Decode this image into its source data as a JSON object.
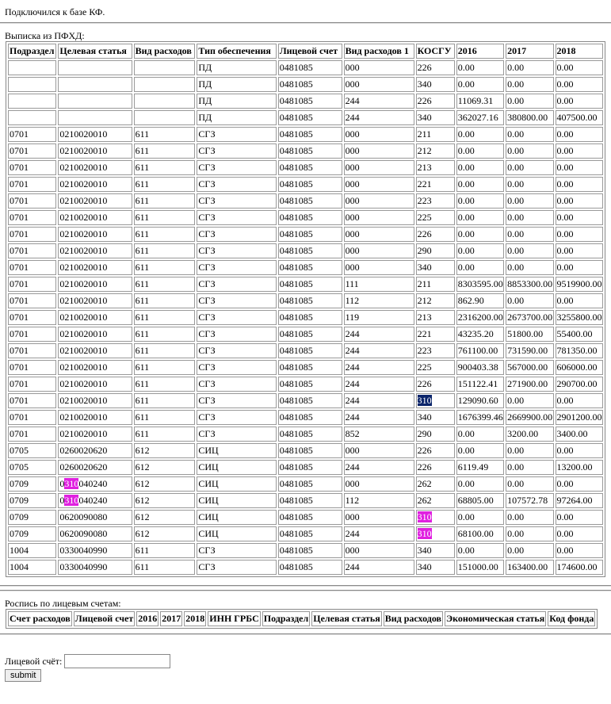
{
  "status": "Подключился к базе КФ.",
  "section1": {
    "title": "Выписка из ПФХД:",
    "table": {
      "header": [
        "Подраздел",
        "Целевая статья",
        "Вид расходов",
        "Тип обеспечения",
        "Лицевой счет",
        "Вид расходов 1",
        "КОСГУ",
        "2016",
        "2017",
        "2018"
      ],
      "rows": [
        [
          "",
          "",
          "",
          "ПД",
          "0481085",
          "000",
          "226",
          "0.00",
          "0.00",
          "0.00"
        ],
        [
          "",
          "",
          "",
          "ПД",
          "0481085",
          "000",
          "340",
          "0.00",
          "0.00",
          "0.00"
        ],
        [
          "",
          "",
          "",
          "ПД",
          "0481085",
          "244",
          "226",
          "11069.31",
          "0.00",
          "0.00"
        ],
        [
          "",
          "",
          "",
          "ПД",
          "0481085",
          "244",
          "340",
          "362027.16",
          "380800.00",
          "407500.00"
        ],
        [
          "0701",
          "0210020010",
          "611",
          "СГЗ",
          "0481085",
          "000",
          "211",
          "0.00",
          "0.00",
          "0.00"
        ],
        [
          "0701",
          "0210020010",
          "611",
          "СГЗ",
          "0481085",
          "000",
          "212",
          "0.00",
          "0.00",
          "0.00"
        ],
        [
          "0701",
          "0210020010",
          "611",
          "СГЗ",
          "0481085",
          "000",
          "213",
          "0.00",
          "0.00",
          "0.00"
        ],
        [
          "0701",
          "0210020010",
          "611",
          "СГЗ",
          "0481085",
          "000",
          "221",
          "0.00",
          "0.00",
          "0.00"
        ],
        [
          "0701",
          "0210020010",
          "611",
          "СГЗ",
          "0481085",
          "000",
          "223",
          "0.00",
          "0.00",
          "0.00"
        ],
        [
          "0701",
          "0210020010",
          "611",
          "СГЗ",
          "0481085",
          "000",
          "225",
          "0.00",
          "0.00",
          "0.00"
        ],
        [
          "0701",
          "0210020010",
          "611",
          "СГЗ",
          "0481085",
          "000",
          "226",
          "0.00",
          "0.00",
          "0.00"
        ],
        [
          "0701",
          "0210020010",
          "611",
          "СГЗ",
          "0481085",
          "000",
          "290",
          "0.00",
          "0.00",
          "0.00"
        ],
        [
          "0701",
          "0210020010",
          "611",
          "СГЗ",
          "0481085",
          "000",
          "340",
          "0.00",
          "0.00",
          "0.00"
        ],
        [
          "0701",
          "0210020010",
          "611",
          "СГЗ",
          "0481085",
          "111",
          "211",
          "8303595.00",
          "8853300.00",
          "9519900.00"
        ],
        [
          "0701",
          "0210020010",
          "611",
          "СГЗ",
          "0481085",
          "112",
          "212",
          "862.90",
          "0.00",
          "0.00"
        ],
        [
          "0701",
          "0210020010",
          "611",
          "СГЗ",
          "0481085",
          "119",
          "213",
          "2316200.00",
          "2673700.00",
          "3255800.00"
        ],
        [
          "0701",
          "0210020010",
          "611",
          "СГЗ",
          "0481085",
          "244",
          "221",
          "43235.20",
          "51800.00",
          "55400.00"
        ],
        [
          "0701",
          "0210020010",
          "611",
          "СГЗ",
          "0481085",
          "244",
          "223",
          "761100.00",
          "731590.00",
          "781350.00"
        ],
        [
          "0701",
          "0210020010",
          "611",
          "СГЗ",
          "0481085",
          "244",
          "225",
          "900403.38",
          "567000.00",
          "606000.00"
        ],
        [
          "0701",
          "0210020010",
          "611",
          "СГЗ",
          "0481085",
          "244",
          "226",
          "151122.41",
          "271900.00",
          "290700.00"
        ],
        [
          "0701",
          "0210020010",
          "611",
          "СГЗ",
          "0481085",
          "244",
          {
            "hit": "310",
            "active": true
          },
          "129090.60",
          "0.00",
          "0.00"
        ],
        [
          "0701",
          "0210020010",
          "611",
          "СГЗ",
          "0481085",
          "244",
          "340",
          "1676399.46",
          "2669900.00",
          "2901200.00"
        ],
        [
          "0701",
          "0210020010",
          "611",
          "СГЗ",
          "0481085",
          "852",
          "290",
          "0.00",
          "3200.00",
          "3400.00"
        ],
        [
          "0705",
          "0260020620",
          "612",
          "СИЦ",
          "0481085",
          "000",
          "226",
          "0.00",
          "0.00",
          "0.00"
        ],
        [
          "0705",
          "0260020620",
          "612",
          "СИЦ",
          "0481085",
          "244",
          "226",
          "6119.49",
          "0.00",
          "13200.00"
        ],
        [
          "0709",
          {
            "pre": "0",
            "hit": "310",
            "post": "040240"
          },
          "612",
          "СИЦ",
          "0481085",
          "000",
          "262",
          "0.00",
          "0.00",
          "0.00"
        ],
        [
          "0709",
          {
            "pre": "0",
            "hit": "310",
            "post": "040240"
          },
          "612",
          "СИЦ",
          "0481085",
          "112",
          "262",
          "68805.00",
          "107572.78",
          "97264.00"
        ],
        [
          "0709",
          "0620090080",
          "612",
          "СИЦ",
          "0481085",
          "000",
          {
            "hit": "310"
          },
          "0.00",
          "0.00",
          "0.00"
        ],
        [
          "0709",
          "0620090080",
          "612",
          "СИЦ",
          "0481085",
          "244",
          {
            "hit": "310"
          },
          "68100.00",
          "0.00",
          "0.00"
        ],
        [
          "1004",
          "0330040990",
          "611",
          "СГЗ",
          "0481085",
          "000",
          "340",
          "0.00",
          "0.00",
          "0.00"
        ],
        [
          "1004",
          "0330040990",
          "611",
          "СГЗ",
          "0481085",
          "244",
          "340",
          "151000.00",
          "163400.00",
          "174600.00"
        ]
      ]
    }
  },
  "section2": {
    "title": "Роспись по лицевым счетам:",
    "table": {
      "header": [
        "Счет расходов",
        "Лицевой счет",
        "2016",
        "2017",
        "2018",
        "ИНН ГРБС",
        "Подраздел",
        "Целевая статья",
        "Вид расходов",
        "Экономическая статья",
        "Код фонда"
      ]
    }
  },
  "form": {
    "label": "Лицевой счёт:",
    "button": "submit"
  }
}
